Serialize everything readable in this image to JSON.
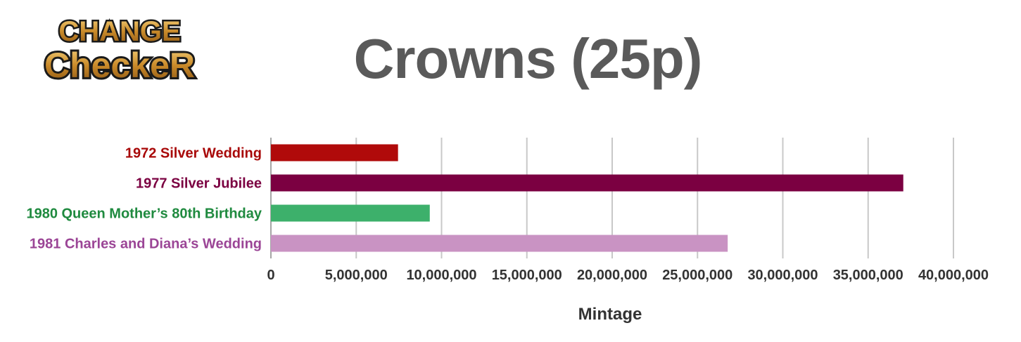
{
  "logo": {
    "line1": "CHANGE",
    "line2": "CheckeR"
  },
  "chart_data": {
    "type": "bar",
    "orientation": "horizontal",
    "title": "Crowns (25p)",
    "xlabel": "Mintage",
    "ylabel": "",
    "categories": [
      "1972 Silver Wedding",
      "1977 Silver Jubilee",
      "1980 Queen Mother’s 80th Birthday",
      "1981 Charles and Diana’s Wedding"
    ],
    "values": [
      7450000,
      37060000,
      9310000,
      26770000
    ],
    "colors": [
      "#b00a0a",
      "#7b0041",
      "#3db06b",
      "#c993c3"
    ],
    "label_colors": [
      "#a80808",
      "#7b0041",
      "#1f8a3f",
      "#9b4596"
    ],
    "xlim": [
      0,
      40000000
    ],
    "tick_labels": [
      "0",
      "5,000,000",
      "10,000,000",
      "15,000,000",
      "20,000,000",
      "25,000,000",
      "30,000,000",
      "35,000,000",
      "40,000,000"
    ],
    "grid": true,
    "legend": "none"
  }
}
